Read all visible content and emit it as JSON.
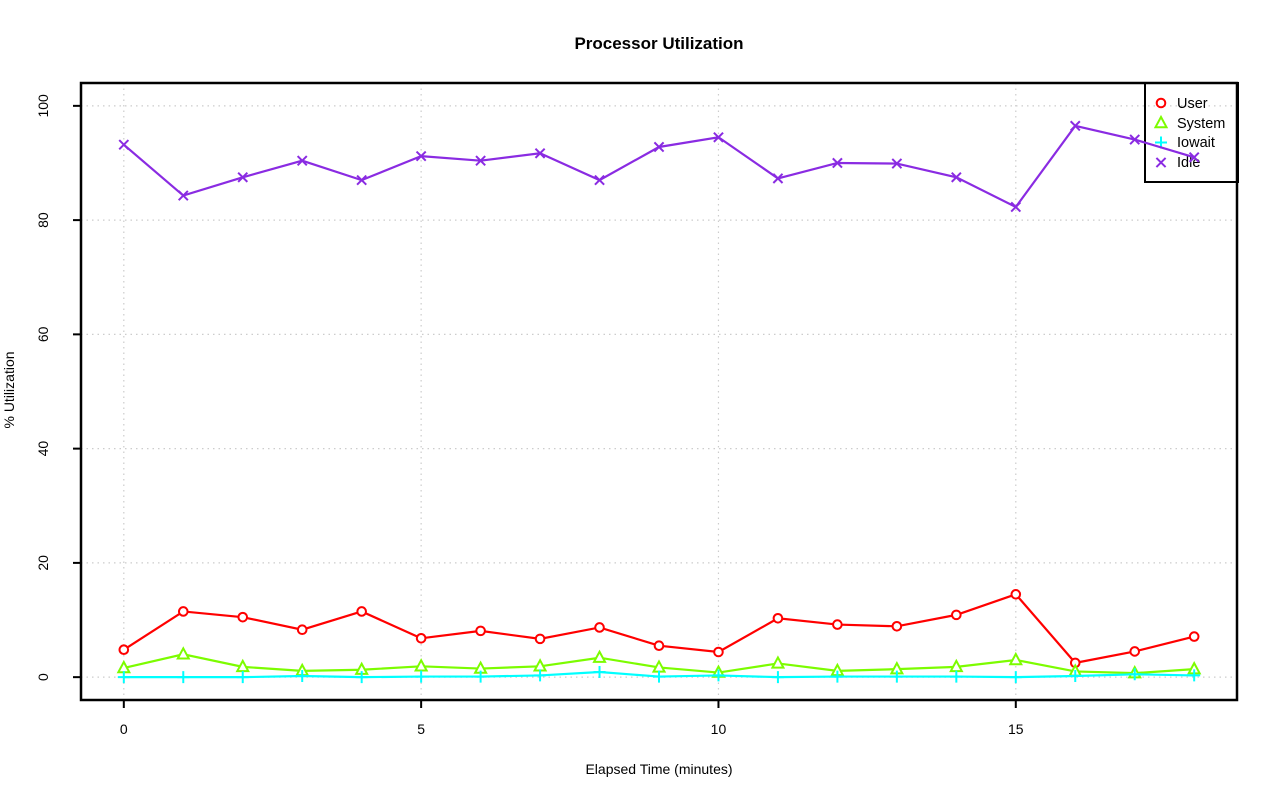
{
  "chart_data": {
    "type": "line",
    "title": "Processor Utilization",
    "xlabel": "Elapsed Time (minutes)",
    "ylabel": "% Utilization",
    "xlim": [
      -0.72,
      18.72
    ],
    "ylim": [
      -4,
      104
    ],
    "xticks": [
      0,
      5,
      10,
      15
    ],
    "yticks": [
      0,
      20,
      40,
      60,
      80,
      100
    ],
    "grid": true,
    "grid_color": "#cccccc",
    "legend_position": "top-right",
    "x": [
      0,
      1,
      2,
      3,
      4,
      5,
      6,
      7,
      8,
      9,
      10,
      11,
      12,
      13,
      14,
      15,
      16,
      17,
      18
    ],
    "series": [
      {
        "name": "User",
        "color": "#ff0000",
        "marker": "circle",
        "values": [
          4.8,
          11.5,
          10.5,
          8.3,
          11.5,
          6.8,
          8.1,
          6.7,
          8.7,
          5.5,
          4.4,
          10.3,
          9.2,
          8.9,
          10.9,
          14.5,
          2.5,
          4.5,
          7.1
        ]
      },
      {
        "name": "System",
        "color": "#7cfc00",
        "marker": "triangle",
        "values": [
          1.6,
          4.0,
          1.8,
          1.1,
          1.3,
          1.9,
          1.5,
          1.9,
          3.4,
          1.7,
          0.8,
          2.4,
          1.1,
          1.4,
          1.8,
          3.0,
          1.0,
          0.7,
          1.4
        ]
      },
      {
        "name": "Iowait",
        "color": "#00ffff",
        "marker": "plus",
        "values": [
          0.0,
          0.0,
          0.0,
          0.2,
          0.0,
          0.1,
          0.1,
          0.3,
          0.9,
          0.1,
          0.3,
          0.0,
          0.1,
          0.1,
          0.1,
          0.0,
          0.2,
          0.5,
          0.3
        ]
      },
      {
        "name": "Idle",
        "color": "#8a2be2",
        "marker": "x",
        "values": [
          93.2,
          84.3,
          87.5,
          90.4,
          87.0,
          91.2,
          90.4,
          91.7,
          87.0,
          92.8,
          94.5,
          87.3,
          90.0,
          89.9,
          87.5,
          82.3,
          96.5,
          94.1,
          91.0
        ]
      }
    ]
  }
}
